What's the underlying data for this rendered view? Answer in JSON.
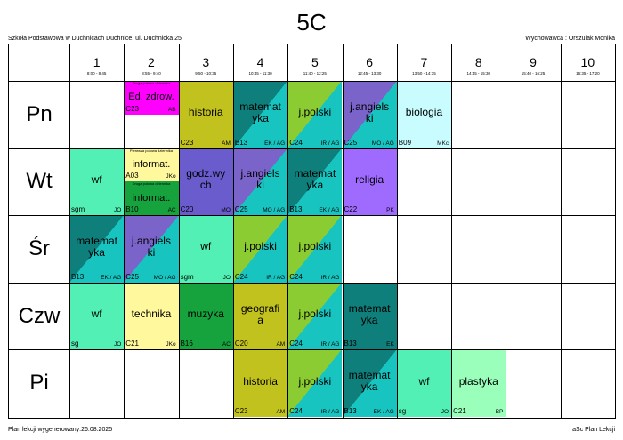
{
  "title": "5C",
  "school": "Szkoła Podstawowa w Duchnicach Duchnice, ul. Duchnicka 25",
  "tutor": "Wychowawca : Orszulak Monika",
  "footer_left": "Plan lekcji wygenerowany:26.08.2025",
  "footer_right": "aSc Plan Lekcji",
  "periods": [
    {
      "num": "1",
      "time": "8:00 - 8:45"
    },
    {
      "num": "2",
      "time": "8:55 - 9:40"
    },
    {
      "num": "3",
      "time": "9:50 - 10:35"
    },
    {
      "num": "4",
      "time": "10:45 - 11:30"
    },
    {
      "num": "5",
      "time": "11:40 - 12:25"
    },
    {
      "num": "6",
      "time": "12:45 - 13:30"
    },
    {
      "num": "7",
      "time": "13:50 - 14:35"
    },
    {
      "num": "8",
      "time": "14:45 - 15:30"
    },
    {
      "num": "9",
      "time": "15:40 - 16:25"
    },
    {
      "num": "10",
      "time": "16:35 - 17:20"
    }
  ],
  "days": [
    "Pn",
    "Wt",
    "Śr",
    "Czw",
    "Pi"
  ],
  "lessons": [
    {
      "day": 0,
      "period": 2,
      "part": "top",
      "subject": "Ed. zdrow.",
      "room": "C23",
      "teacher": "AB",
      "note": "Druga połowa dziennika",
      "bg": "#ff00ff"
    },
    {
      "day": 0,
      "period": 3,
      "subject": "historia",
      "room": "C23",
      "teacher": "AM",
      "bg": "#c2c21f"
    },
    {
      "day": 0,
      "period": 4,
      "subject": "matemat\nyka",
      "room": "B13",
      "teacher": "EK / AG",
      "bg": "#18c4c0",
      "diag": "#0f7f7c"
    },
    {
      "day": 0,
      "period": 5,
      "subject": "j.polski",
      "room": "C24",
      "teacher": "IR / AG",
      "bg": "#18c4c0",
      "diag": "#8ccc33"
    },
    {
      "day": 0,
      "period": 6,
      "subject": "j.angiels\nki",
      "room": "C25",
      "teacher": "MO / AG",
      "bg": "#18c4c0",
      "diag": "#7a63c9"
    },
    {
      "day": 0,
      "period": 7,
      "subject": "biologia",
      "room": "B09",
      "teacher": "MKc",
      "bg": "#c8fcff"
    },
    {
      "day": 1,
      "period": 1,
      "subject": "wf",
      "room": "sgm",
      "teacher": "JO",
      "bg": "#52f0b5"
    },
    {
      "day": 1,
      "period": 2,
      "part": "top",
      "subject": "informat.",
      "room": "A03",
      "teacher": "JKo",
      "note": "Pierwsza połowa dziennika",
      "bg": "#fff89c"
    },
    {
      "day": 1,
      "period": 2,
      "part": "bottom",
      "subject": "informat.",
      "room": "B10",
      "teacher": "AC",
      "note": "Druga połowa dziennika",
      "bg": "#16a33e"
    },
    {
      "day": 1,
      "period": 3,
      "subject": "godz.wy\nch",
      "room": "C20",
      "teacher": "MO",
      "bg": "#6a5ccc"
    },
    {
      "day": 1,
      "period": 4,
      "subject": "j.angiels\nki",
      "room": "C25",
      "teacher": "MO / AG",
      "bg": "#18c4c0",
      "diag": "#7a63c9"
    },
    {
      "day": 1,
      "period": 5,
      "subject": "matemat\nyka",
      "room": "B13",
      "teacher": "EK / AG",
      "bg": "#18c4c0",
      "diag": "#0f7f7c"
    },
    {
      "day": 1,
      "period": 6,
      "subject": "religia",
      "room": "C22",
      "teacher": "PK",
      "bg": "#9f6bff"
    },
    {
      "day": 2,
      "period": 1,
      "subject": "matemat\nyka",
      "room": "B13",
      "teacher": "EK / AG",
      "bg": "#18c4c0",
      "diag": "#0f7f7c"
    },
    {
      "day": 2,
      "period": 2,
      "subject": "j.angiels\nki",
      "room": "C25",
      "teacher": "MO / AG",
      "bg": "#18c4c0",
      "diag": "#7a63c9"
    },
    {
      "day": 2,
      "period": 3,
      "subject": "wf",
      "room": "sgm",
      "teacher": "JO",
      "bg": "#52f0b5"
    },
    {
      "day": 2,
      "period": 4,
      "subject": "j.polski",
      "room": "C24",
      "teacher": "IR / AG",
      "bg": "#18c4c0",
      "diag": "#8ccc33"
    },
    {
      "day": 2,
      "period": 5,
      "subject": "j.polski",
      "room": "C24",
      "teacher": "IR / AG",
      "bg": "#18c4c0",
      "diag": "#8ccc33"
    },
    {
      "day": 3,
      "period": 1,
      "subject": "wf",
      "room": "sg",
      "teacher": "JO",
      "bg": "#52f0b5"
    },
    {
      "day": 3,
      "period": 2,
      "subject": "technika",
      "room": "C21",
      "teacher": "JKo",
      "bg": "#fff89c"
    },
    {
      "day": 3,
      "period": 3,
      "subject": "muzyka",
      "room": "B16",
      "teacher": "AC",
      "bg": "#16a33e"
    },
    {
      "day": 3,
      "period": 4,
      "subject": "geografi\na",
      "room": "C20",
      "teacher": "AM",
      "bg": "#c2c21f"
    },
    {
      "day": 3,
      "period": 5,
      "subject": "j.polski",
      "room": "C24",
      "teacher": "IR / AG",
      "bg": "#18c4c0",
      "diag": "#8ccc33"
    },
    {
      "day": 3,
      "period": 6,
      "subject": "matemat\nyka",
      "room": "B13",
      "teacher": "EK",
      "bg": "#0f7f7c"
    },
    {
      "day": 4,
      "period": 4,
      "subject": "historia",
      "room": "C23",
      "teacher": "AM",
      "bg": "#c2c21f"
    },
    {
      "day": 4,
      "period": 5,
      "subject": "j.polski",
      "room": "C24",
      "teacher": "IR / AG",
      "bg": "#18c4c0",
      "diag": "#8ccc33"
    },
    {
      "day": 4,
      "period": 6,
      "subject": "matemat\nyka",
      "room": "B13",
      "teacher": "EK / AG",
      "bg": "#18c4c0",
      "diag": "#0f7f7c"
    },
    {
      "day": 4,
      "period": 7,
      "subject": "wf",
      "room": "sg",
      "teacher": "JO",
      "bg": "#52f0b5"
    },
    {
      "day": 4,
      "period": 8,
      "subject": "plastyka",
      "room": "C21",
      "teacher": "BP",
      "bg": "#99ffbb"
    }
  ]
}
